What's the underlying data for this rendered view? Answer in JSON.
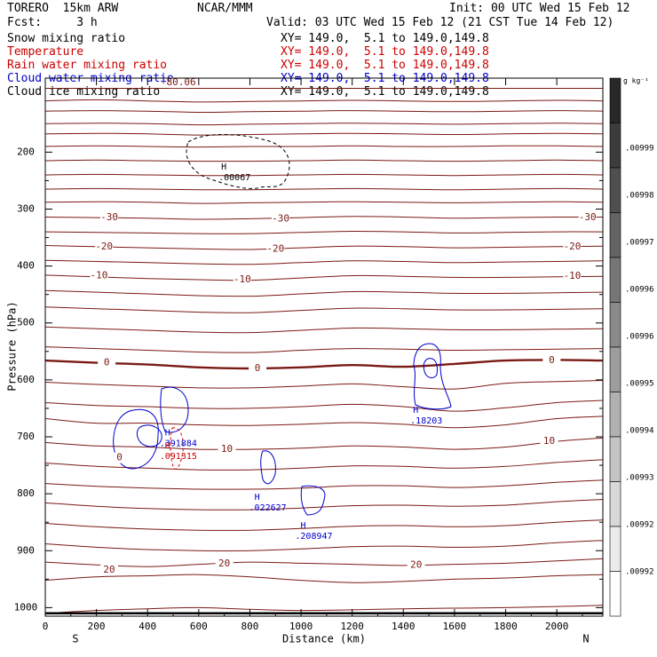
{
  "header": {
    "model": "TORERO  15km ARW",
    "center": "NCAR/MMM",
    "init": "Init: 00 UTC Wed 15 Feb 12",
    "fcst": "Fcst:     3 h",
    "valid": "Valid: 03 UTC Wed 15 Feb 12 (21 CST Tue 14 Feb 12)"
  },
  "legend": [
    {
      "name": "Snow mixing ratio",
      "xy": "XY= 149.0,  5.1 to 149.0,149.8",
      "color": "#000000"
    },
    {
      "name": "Temperature",
      "xy": "XY= 149.0,  5.1 to 149.0,149.8",
      "color": "#cc0000"
    },
    {
      "name": "Rain water mixing ratio",
      "xy": "XY= 149.0,  5.1 to 149.0,149.8",
      "color": "#cc0000"
    },
    {
      "name": "Cloud water mixing ratio",
      "xy": "XY= 149.0,  5.1 to 149.0,149.8",
      "color": "#0000cc"
    },
    {
      "name": "Cloud ice mixing ratio",
      "xy": "XY= 149.0,  5.1 to 149.0,149.8",
      "color": "#000000"
    }
  ],
  "colorbar": {
    "unit": "g kg⁻¹",
    "labels": [
      ".00999",
      ".00998",
      ".00997",
      ".00996",
      ".00996",
      ".00995",
      ".00994",
      ".00993",
      ".00992",
      ".00992"
    ]
  },
  "chart_data": {
    "type": "line",
    "title": "",
    "xlabel": "Distance (km)",
    "ylabel": "Pressure (hPa)",
    "xlim": [
      0,
      2180
    ],
    "ylim": [
      1015,
      70
    ],
    "x_ticks": [
      0,
      200,
      400,
      600,
      800,
      1000,
      1200,
      1400,
      1600,
      1800,
      2000
    ],
    "y_ticks": [
      200,
      300,
      400,
      500,
      600,
      700,
      800,
      900,
      1000
    ],
    "x_end_labels": {
      "left": "S",
      "right": "N"
    },
    "isotherm_x": [
      0,
      200,
      400,
      600,
      800,
      1000,
      1200,
      1400,
      1600,
      1800,
      2000,
      2180
    ],
    "isotherms": [
      {
        "p": [
          88,
          88,
          88,
          88,
          88,
          88,
          88,
          88,
          88,
          88,
          88,
          88
        ]
      },
      {
        "p": [
          110,
          108,
          110,
          112,
          111,
          110,
          109,
          110,
          111,
          110,
          109,
          110
        ]
      },
      {
        "p": [
          128,
          127,
          128,
          130,
          129,
          128,
          127,
          128,
          129,
          128,
          127,
          128
        ]
      },
      {
        "p": [
          150,
          149,
          150,
          152,
          151,
          150,
          149,
          150,
          151,
          150,
          149,
          150
        ]
      },
      {
        "p": [
          168,
          167,
          168,
          170,
          169,
          168,
          167,
          168,
          169,
          168,
          167,
          168
        ]
      },
      {
        "p": [
          190,
          189,
          190,
          191,
          190,
          190,
          189,
          190,
          190,
          189,
          189,
          190
        ]
      },
      {
        "p": [
          215,
          214,
          215,
          216,
          216,
          215,
          214,
          215,
          216,
          215,
          214,
          215
        ]
      },
      {
        "p": [
          240,
          239,
          240,
          241,
          241,
          240,
          239,
          240,
          241,
          240,
          239,
          240
        ]
      },
      {
        "p": [
          265,
          264,
          265,
          266,
          266,
          265,
          264,
          265,
          266,
          265,
          264,
          265
        ]
      },
      {
        "p": [
          288,
          287,
          288,
          290,
          289,
          288,
          287,
          288,
          289,
          288,
          287,
          288
        ]
      },
      {
        "label": "-30",
        "p": [
          314,
          315,
          316,
          318,
          317,
          315,
          313,
          314,
          316,
          315,
          314,
          314
        ]
      },
      {
        "p": [
          340,
          341,
          342,
          343,
          343,
          341,
          339,
          340,
          342,
          341,
          340,
          340
        ]
      },
      {
        "label": "-20",
        "p": [
          364,
          366,
          368,
          370,
          371,
          368,
          365,
          366,
          368,
          367,
          366,
          365
        ]
      },
      {
        "p": [
          390,
          392,
          394,
          396,
          397,
          394,
          391,
          392,
          394,
          393,
          392,
          391
        ]
      },
      {
        "label": "-10",
        "p": [
          416,
          419,
          422,
          424,
          425,
          421,
          417,
          418,
          420,
          420,
          419,
          418
        ]
      },
      {
        "p": [
          443,
          446,
          449,
          452,
          453,
          449,
          445,
          446,
          448,
          448,
          447,
          446
        ]
      },
      {
        "p": [
          472,
          475,
          478,
          481,
          482,
          478,
          474,
          475,
          477,
          477,
          476,
          475
        ]
      },
      {
        "p": [
          507,
          510,
          513,
          516,
          517,
          513,
          509,
          510,
          512,
          512,
          511,
          510
        ]
      },
      {
        "p": [
          542,
          545,
          548,
          551,
          552,
          548,
          545,
          546,
          548,
          547,
          546,
          545
        ]
      },
      {
        "label": "0",
        "bold": true,
        "p": [
          566,
          570,
          573,
          578,
          580,
          578,
          574,
          577,
          572,
          566,
          565,
          566
        ]
      },
      {
        "p": [
          604,
          608,
          611,
          614,
          614,
          611,
          607,
          612,
          616,
          606,
          603,
          601
        ]
      },
      {
        "p": [
          640,
          645,
          647,
          650,
          650,
          647,
          643,
          647,
          655,
          649,
          640,
          636
        ]
      },
      {
        "p": [
          668,
          676,
          676,
          679,
          680,
          678,
          675,
          678,
          684,
          679,
          668,
          664
        ]
      },
      {
        "label": "10",
        "p": [
          710,
          716,
          718,
          722,
          722,
          720,
          716,
          718,
          722,
          718,
          708,
          702
        ]
      },
      {
        "p": [
          746,
          752,
          755,
          758,
          758,
          755,
          751,
          752,
          755,
          752,
          745,
          740
        ]
      },
      {
        "p": [
          782,
          787,
          790,
          792,
          792,
          790,
          786,
          786,
          789,
          786,
          780,
          776
        ]
      },
      {
        "p": [
          816,
          822,
          826,
          828,
          828,
          825,
          821,
          820,
          822,
          820,
          814,
          810
        ]
      },
      {
        "p": [
          852,
          858,
          862,
          864,
          864,
          861,
          857,
          856,
          858,
          856,
          850,
          846
        ]
      },
      {
        "p": [
          888,
          894,
          898,
          900,
          900,
          897,
          893,
          892,
          894,
          892,
          886,
          882
        ]
      },
      {
        "label": "20",
        "p": [
          920,
          925,
          928,
          924,
          920,
          922,
          924,
          926,
          924,
          922,
          918,
          914
        ]
      },
      {
        "p": [
          952,
          946,
          944,
          942,
          946,
          952,
          956,
          954,
          950,
          948,
          944,
          942
        ]
      },
      {
        "p": [
          1010,
          1005,
          1002,
          1000,
          1003,
          1005,
          1004,
          1002,
          1001,
          1000,
          998,
          996
        ]
      }
    ],
    "isotherm_labels": [
      {
        "text": "-80.06",
        "x": 520,
        "p": 78
      },
      {
        "text": "-30",
        "x": 250,
        "p": 315
      },
      {
        "text": "-30",
        "x": 920,
        "p": 317
      },
      {
        "text": "-30",
        "x": 2120,
        "p": 315
      },
      {
        "text": "-20",
        "x": 230,
        "p": 366
      },
      {
        "text": "-20",
        "x": 900,
        "p": 370
      },
      {
        "text": "-20",
        "x": 2060,
        "p": 366
      },
      {
        "text": "-10",
        "x": 210,
        "p": 417
      },
      {
        "text": "-10",
        "x": 770,
        "p": 424
      },
      {
        "text": "-10",
        "x": 2060,
        "p": 418
      },
      {
        "text": "0",
        "x": 240,
        "p": 570
      },
      {
        "text": "0",
        "x": 830,
        "p": 580
      },
      {
        "text": "0",
        "x": 1980,
        "p": 566
      },
      {
        "text": "0",
        "x": 290,
        "p": 737
      },
      {
        "text": "10",
        "x": 710,
        "p": 722
      },
      {
        "text": "10",
        "x": 1970,
        "p": 708
      },
      {
        "text": "20",
        "x": 700,
        "p": 923
      },
      {
        "text": "20",
        "x": 1450,
        "p": 925
      },
      {
        "text": "20",
        "x": 250,
        "p": 934
      }
    ],
    "highs": [
      {
        "label": ".00067",
        "x": 740,
        "p": 245,
        "color": "#000000"
      },
      {
        "label": ".391884",
        "x": 520,
        "p": 712,
        "color": "#0000cc"
      },
      {
        "label": ".091315",
        "x": 520,
        "p": 734,
        "color": "#cc0000"
      },
      {
        "label": ".022627",
        "x": 870,
        "p": 825,
        "color": "#0000cc"
      },
      {
        "label": ".208947",
        "x": 1050,
        "p": 875,
        "color": "#0000cc"
      },
      {
        "label": ".18203",
        "x": 1490,
        "p": 672,
        "color": "#0000cc"
      }
    ]
  }
}
